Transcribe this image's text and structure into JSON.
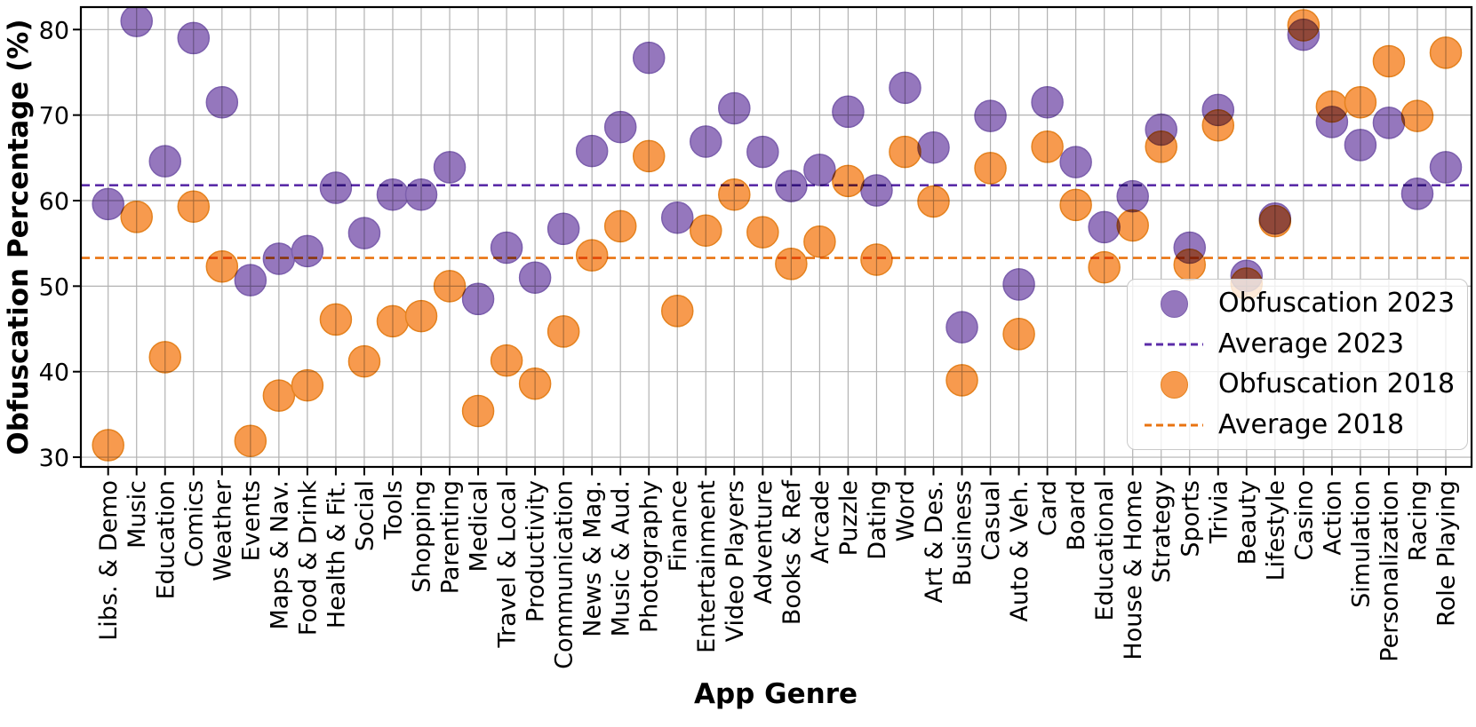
{
  "figure": {
    "ylabel": "Obfuscation Percentage (%)",
    "xlabel": "App Genre"
  },
  "legend": {
    "items": [
      {
        "label": "Obfuscation 2023",
        "marker": "circle",
        "color": "#9577bd",
        "edge_color": "#7c5fad"
      },
      {
        "label": "Average 2023",
        "marker": "dashed-line",
        "color": "#5b2ca8"
      },
      {
        "label": "Obfuscation 2018",
        "marker": "circle",
        "color": "#f79a4e",
        "edge_color": "#e5821f"
      },
      {
        "label": "Average 2018",
        "marker": "dashed-line",
        "color": "#e97310"
      }
    ]
  },
  "chart_data": {
    "type": "scatter",
    "title": "",
    "xlabel": "App Genre",
    "ylabel": "Obfuscation Percentage (%)",
    "ylim": [
      28.8,
      82.7
    ],
    "yticks": [
      30,
      40,
      50,
      60,
      70,
      80
    ],
    "grid": true,
    "legend_position": "lower right",
    "categories": [
      "Libs. & Demo",
      "Music",
      "Education",
      "Comics",
      "Weather",
      "Events",
      "Maps & Nav.",
      "Food & Drink",
      "Health & Fit.",
      "Social",
      "Tools",
      "Shopping",
      "Parenting",
      "Medical",
      "Travel & Local",
      "Productivity",
      "Communication",
      "News & Mag.",
      "Music & Aud.",
      "Photography",
      "Finance",
      "Entertainment",
      "Video Players",
      "Adventure",
      "Books & Ref",
      "Arcade",
      "Puzzle",
      "Dating",
      "Word",
      "Art & Des.",
      "Business",
      "Casual",
      "Auto & Veh.",
      "Card",
      "Board",
      "Educational",
      "House & Home",
      "Strategy",
      "Sports",
      "Trivia",
      "Beauty",
      "Lifestyle",
      "Casino",
      "Action",
      "Simulation",
      "Personalization",
      "Racing",
      "Role Playing"
    ],
    "series": [
      {
        "name": "Obfuscation 2023",
        "color": "#9577bd",
        "edge_color": "#7c5fad",
        "values": [
          59.6,
          81.0,
          64.6,
          79.0,
          71.5,
          50.7,
          53.2,
          54.1,
          61.5,
          56.2,
          60.7,
          60.7,
          63.9,
          48.5,
          54.5,
          51.0,
          56.7,
          65.8,
          68.6,
          76.7,
          58.0,
          66.9,
          70.8,
          65.7,
          61.7,
          63.6,
          70.4,
          61.2,
          73.2,
          66.2,
          45.2,
          69.9,
          50.2,
          71.5,
          64.5,
          56.9,
          60.5,
          68.3,
          54.5,
          70.6,
          51.2,
          57.9,
          79.4,
          69.2,
          66.5,
          69.1,
          60.8,
          63.9
        ]
      },
      {
        "name": "Obfuscation 2018",
        "color": "#f79a4e",
        "edge_color": "#e5821f",
        "values": [
          31.4,
          58.1,
          41.7,
          59.3,
          52.3,
          31.9,
          37.2,
          38.4,
          46.1,
          41.2,
          45.9,
          46.5,
          50.0,
          35.4,
          41.3,
          38.6,
          44.7,
          53.6,
          57.0,
          65.2,
          47.1,
          56.5,
          60.7,
          56.3,
          52.6,
          55.2,
          62.3,
          53.1,
          65.7,
          59.9,
          39.0,
          63.8,
          44.4,
          66.3,
          59.5,
          52.2,
          57.1,
          66.3,
          52.5,
          68.8,
          50.3,
          57.6,
          80.5,
          71.0,
          71.5,
          76.3,
          69.9,
          77.3
        ]
      }
    ],
    "average_lines": [
      {
        "name": "Average 2023",
        "value": 61.8,
        "color": "#5b2ca8"
      },
      {
        "name": "Average 2018",
        "value": 53.3,
        "color": "#e97310"
      }
    ],
    "grid_color": "#b2b2b2",
    "marker_diameter_px": 35
  }
}
